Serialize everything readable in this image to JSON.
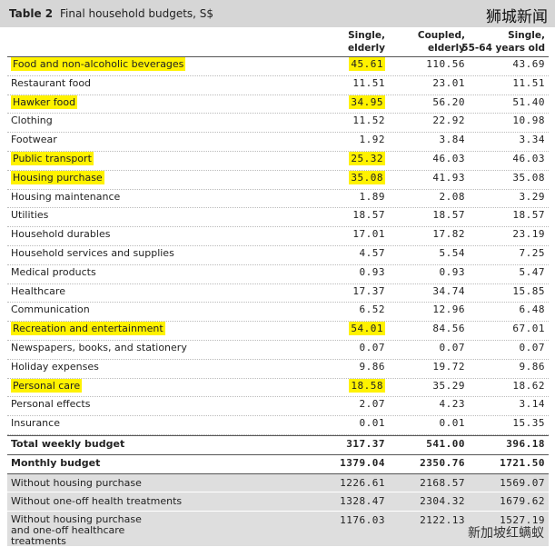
{
  "header": {
    "label": "Table 2",
    "title": "Final household budgets, S$",
    "watermark": "狮城新闻"
  },
  "columns": [
    [
      "Single,",
      "elderly"
    ],
    [
      "Coupled,",
      "elderly"
    ],
    [
      "Single,",
      "55-64 years old"
    ]
  ],
  "items": [
    {
      "label": "Food and non-alcoholic beverages",
      "values": [
        "45.61",
        "110.56",
        "43.69"
      ],
      "highlight": true
    },
    {
      "label": "Restaurant food",
      "values": [
        "11.51",
        "23.01",
        "11.51"
      ],
      "highlight": false
    },
    {
      "label": "Hawker food",
      "values": [
        "34.95",
        "56.20",
        "51.40"
      ],
      "highlight": true
    },
    {
      "label": "Clothing",
      "values": [
        "11.52",
        "22.92",
        "10.98"
      ],
      "highlight": false
    },
    {
      "label": "Footwear",
      "values": [
        "1.92",
        "3.84",
        "3.34"
      ],
      "highlight": false
    },
    {
      "label": "Public transport",
      "values": [
        "25.32",
        "46.03",
        "46.03"
      ],
      "highlight": true
    },
    {
      "label": "Housing purchase",
      "values": [
        "35.08",
        "41.93",
        "35.08"
      ],
      "highlight": true
    },
    {
      "label": "Housing maintenance",
      "values": [
        "1.89",
        "2.08",
        "3.29"
      ],
      "highlight": false
    },
    {
      "label": "Utilities",
      "values": [
        "18.57",
        "18.57",
        "18.57"
      ],
      "highlight": false
    },
    {
      "label": "Household durables",
      "values": [
        "17.01",
        "17.82",
        "23.19"
      ],
      "highlight": false
    },
    {
      "label": "Household services and supplies",
      "values": [
        "4.57",
        "5.54",
        "7.25"
      ],
      "highlight": false
    },
    {
      "label": "Medical products",
      "values": [
        "0.93",
        "0.93",
        "5.47"
      ],
      "highlight": false
    },
    {
      "label": "Healthcare",
      "values": [
        "17.37",
        "34.74",
        "15.85"
      ],
      "highlight": false
    },
    {
      "label": "Communication",
      "values": [
        "6.52",
        "12.96",
        "6.48"
      ],
      "highlight": false
    },
    {
      "label": "Recreation and entertainment",
      "values": [
        "54.01",
        "84.56",
        "67.01"
      ],
      "highlight": true
    },
    {
      "label": "Newspapers, books, and stationery",
      "values": [
        "0.07",
        "0.07",
        "0.07"
      ],
      "highlight": false
    },
    {
      "label": "Holiday expenses",
      "values": [
        "9.86",
        "19.72",
        "9.86"
      ],
      "highlight": false
    },
    {
      "label": "Personal care",
      "values": [
        "18.58",
        "35.29",
        "18.62"
      ],
      "highlight": true
    },
    {
      "label": "Personal effects",
      "values": [
        "2.07",
        "4.23",
        "3.14"
      ],
      "highlight": false
    },
    {
      "label": "Insurance",
      "values": [
        "0.01",
        "0.01",
        "15.35"
      ],
      "highlight": false
    }
  ],
  "totals": [
    {
      "label": "Total weekly budget",
      "values": [
        "317.37",
        "541.00",
        "396.18"
      ]
    },
    {
      "label": "Monthly budget",
      "values": [
        "1379.04",
        "2350.76",
        "1721.50"
      ]
    }
  ],
  "variants": [
    {
      "label": "Without housing purchase",
      "values": [
        "1226.61",
        "2168.57",
        "1569.07"
      ]
    },
    {
      "label": "Without one-off health treatments",
      "values": [
        "1328.47",
        "2304.32",
        "1679.62"
      ]
    },
    {
      "label": "Without housing purchase and one-off healthcare treatments",
      "values": [
        "1176.03",
        "2122.13",
        "1527.19"
      ]
    }
  ],
  "footer": {
    "watermark": "新加坡红螨蚁"
  }
}
